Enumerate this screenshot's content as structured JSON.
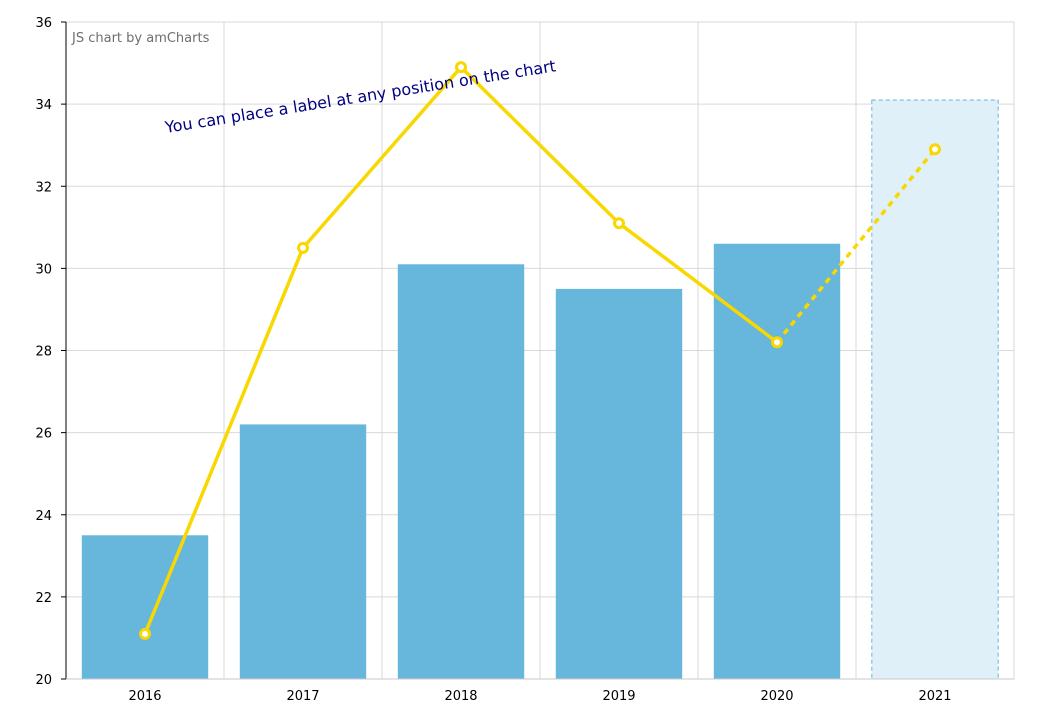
{
  "credit": "JS chart by amCharts",
  "annotation": "You can place a label at any position on the chart",
  "colors": {
    "bar": "#67b6dc",
    "bar_projected_fill": "#dff0f8",
    "bar_projected_stroke": "#67b6dc",
    "line": "#f9d700",
    "grid": "#d9d9d9",
    "axis": "#000000",
    "annotation": "#000080"
  },
  "chart_data": {
    "type": "bar",
    "categories": [
      "2016",
      "2017",
      "2018",
      "2019",
      "2020",
      "2021"
    ],
    "ylim": [
      20,
      36
    ],
    "yticks": [
      20,
      22,
      24,
      26,
      28,
      30,
      32,
      34,
      36
    ],
    "grid": true,
    "series": [
      {
        "type": "bar",
        "values": [
          23.5,
          26.2,
          30.1,
          29.5,
          30.6,
          34.1
        ],
        "projected": [
          false,
          false,
          false,
          false,
          false,
          true
        ]
      },
      {
        "type": "line",
        "values": [
          21.1,
          30.5,
          34.9,
          31.1,
          28.2,
          32.9
        ],
        "dashed_from_index": 4
      }
    ]
  }
}
